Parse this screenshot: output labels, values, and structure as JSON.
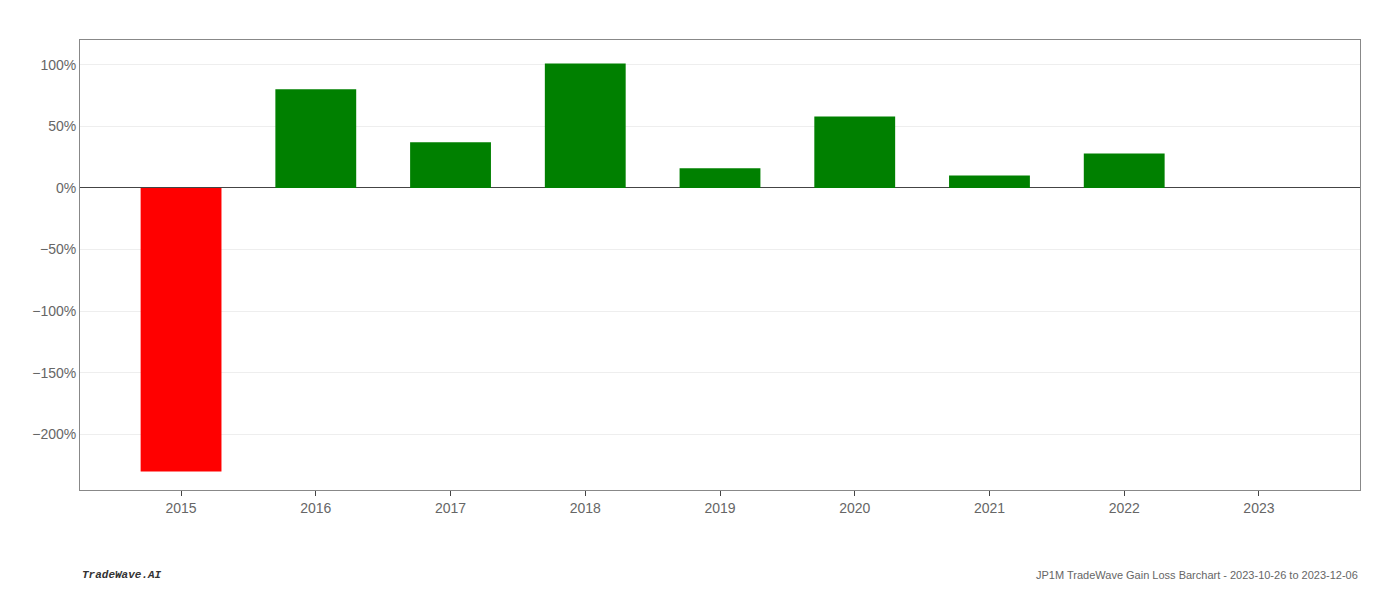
{
  "chart_data": {
    "type": "bar",
    "x": [
      2015,
      2016,
      2017,
      2018,
      2019,
      2020,
      2021,
      2022,
      2023
    ],
    "values": [
      -230,
      80,
      37,
      101,
      16,
      58,
      10,
      28,
      null
    ],
    "colors": [
      "#ff0000",
      "#008000",
      "#008000",
      "#008000",
      "#008000",
      "#008000",
      "#008000",
      "#008000",
      null
    ],
    "xlim": [
      2014.25,
      2023.75
    ],
    "xticks": [
      2015,
      2016,
      2017,
      2018,
      2019,
      2020,
      2021,
      2022,
      2023
    ],
    "ylim": [
      -245,
      120
    ],
    "yticks": [
      {
        "value": -200,
        "label": "−200%"
      },
      {
        "value": -150,
        "label": "−150%"
      },
      {
        "value": -100,
        "label": "−100%"
      },
      {
        "value": -50,
        "label": "−50%"
      },
      {
        "value": 0,
        "label": "0%"
      },
      {
        "value": 50,
        "label": "50%"
      },
      {
        "value": 100,
        "label": "100%"
      }
    ],
    "grid": true,
    "annotations": [
      "TradeWave.AI",
      "JP1M TradeWave Gain Loss Barchart - 2023-10-26 to 2023-12-06"
    ]
  }
}
